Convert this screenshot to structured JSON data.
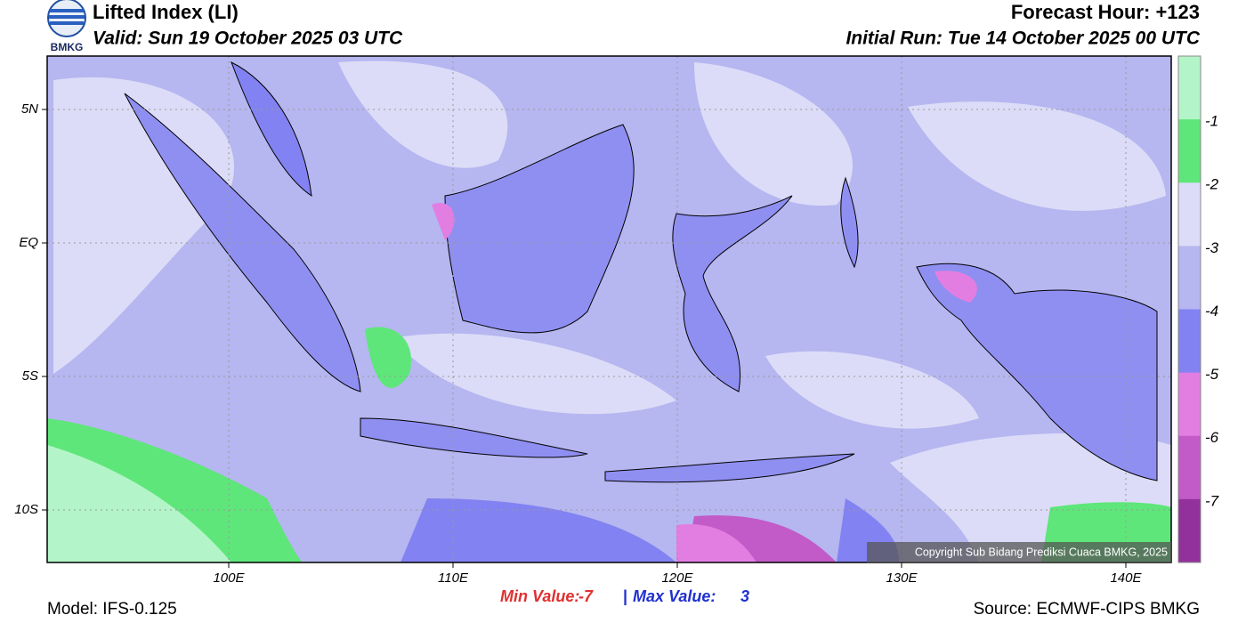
{
  "header": {
    "title": "Lifted Index (LI)",
    "valid": "Valid: Sun 19 October 2025 03 UTC",
    "forecast_hour": "Forecast Hour: +123",
    "initial_run": "Initial Run: Tue 14 October 2025 00 UTC",
    "logo": "BMKG"
  },
  "map": {
    "lat_labels": [
      "5N",
      "EQ",
      "5S",
      "10S"
    ],
    "lon_labels": [
      "100E",
      "110E",
      "120E",
      "130E",
      "140E"
    ],
    "copyright": "Copyright Sub Bidang Prediksi Cuaca BMKG, 2025"
  },
  "colorbar": {
    "ticks": [
      -1,
      -2,
      -3,
      -4,
      -5,
      -6,
      -7
    ],
    "colors": [
      "#b3f5c8",
      "#5ee67a",
      "#dcdcf8",
      "#b6b6f0",
      "#8282f2",
      "#e27ee2",
      "#c25ac8",
      "#92309c"
    ]
  },
  "footer": {
    "model": "Model: IFS-0.125",
    "min_label": "Min Value:",
    "min_value": -7,
    "separator": "|",
    "max_label": "Max Value:",
    "max_value": 3,
    "source": "Source: ECMWF-CIPS BMKG"
  }
}
